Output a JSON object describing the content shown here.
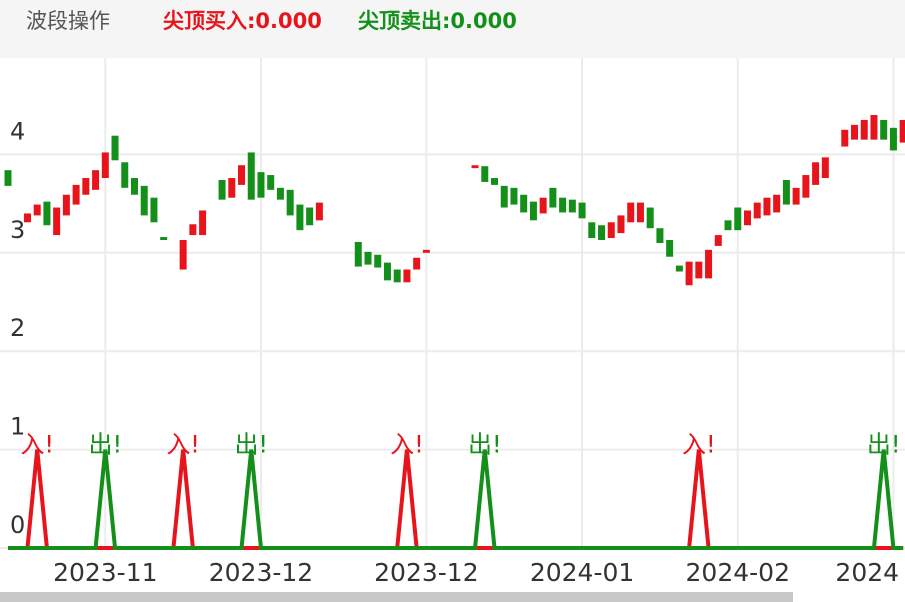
{
  "chart_data": {
    "type": "candlestick",
    "title": "波段操作",
    "up_color": "#e8141b",
    "down_color": "#14901a",
    "ylim": [
      0,
      5
    ],
    "yticks": [
      0,
      1,
      2,
      3,
      4
    ],
    "grid": true,
    "categories": [
      null,
      null,
      null,
      null,
      null,
      null,
      null,
      null,
      null,
      null,
      "2023-11",
      null,
      null,
      null,
      null,
      null,
      null,
      null,
      null,
      null,
      null,
      null,
      null,
      null,
      null,
      null,
      "2023-12",
      null,
      null,
      null,
      null,
      null,
      null,
      null,
      null,
      null,
      null,
      null,
      null,
      null,
      null,
      null,
      null,
      "2023-12",
      null,
      null,
      null,
      null,
      null,
      null,
      null,
      null,
      null,
      null,
      null,
      null,
      null,
      null,
      null,
      "2024-01",
      null,
      null,
      null,
      null,
      null,
      null,
      null,
      null,
      null,
      null,
      null,
      null,
      null,
      null,
      null,
      "2024-02",
      null,
      null,
      null,
      null,
      null,
      null,
      null,
      null,
      null,
      null,
      null,
      null,
      null,
      null,
      null,
      "2024",
      null
    ],
    "open": [
      3.84,
      null,
      3.31,
      3.38,
      3.52,
      3.18,
      3.38,
      3.49,
      3.59,
      3.64,
      3.76,
      4.19,
      3.92,
      3.76,
      3.68,
      3.56,
      3.16,
      null,
      2.83,
      3.18,
      3.18,
      null,
      3.74,
      3.56,
      3.69,
      4.02,
      3.82,
      3.79,
      3.66,
      3.64,
      3.49,
      3.46,
      3.33,
      null,
      null,
      null,
      3.11,
      3.01,
      2.98,
      2.9,
      2.83,
      2.7,
      2.83,
      3.0,
      null,
      null,
      null,
      null,
      3.86,
      3.88,
      3.76,
      3.68,
      3.66,
      3.59,
      3.52,
      3.4,
      3.66,
      3.56,
      3.54,
      3.51,
      3.31,
      3.28,
      3.15,
      3.2,
      3.31,
      3.31,
      3.46,
      3.25,
      3.13,
      2.87,
      2.67,
      2.74,
      2.74,
      3.07,
      3.33,
      3.46,
      3.28,
      3.35,
      3.38,
      3.41,
      3.74,
      3.49,
      3.56,
      3.69,
      3.76,
      null,
      4.08,
      4.15,
      4.15,
      4.15,
      4.35,
      4.27,
      4.12
    ],
    "close": [
      3.68,
      null,
      3.4,
      3.49,
      3.28,
      3.46,
      3.59,
      3.69,
      3.76,
      3.84,
      4.02,
      3.94,
      3.66,
      3.59,
      3.38,
      3.31,
      3.13,
      null,
      3.13,
      3.29,
      3.43,
      null,
      3.54,
      3.76,
      3.89,
      3.54,
      3.56,
      3.64,
      3.54,
      3.38,
      3.23,
      3.28,
      3.51,
      null,
      null,
      null,
      2.86,
      2.88,
      2.85,
      2.72,
      2.7,
      2.83,
      2.95,
      3.03,
      null,
      null,
      null,
      null,
      3.89,
      3.72,
      3.69,
      3.46,
      3.49,
      3.41,
      3.33,
      3.56,
      3.46,
      3.41,
      3.41,
      3.35,
      3.15,
      3.13,
      3.31,
      3.38,
      3.51,
      3.51,
      3.25,
      3.1,
      2.96,
      2.81,
      2.91,
      2.91,
      3.03,
      3.18,
      3.23,
      3.23,
      3.43,
      3.51,
      3.56,
      3.59,
      3.49,
      3.66,
      3.79,
      3.92,
      3.97,
      null,
      4.25,
      4.3,
      4.35,
      4.4,
      4.15,
      4.04,
      4.35
    ],
    "series": [
      {
        "name": "尖顶买入:0.000",
        "color": "#e8141b",
        "label": "入!",
        "values": [
          0,
          0,
          0,
          1,
          0,
          0,
          0,
          0,
          0,
          0,
          0,
          0,
          0,
          0,
          0,
          0,
          0,
          0,
          1,
          0,
          0,
          0,
          0,
          0,
          0,
          0,
          0,
          0,
          0,
          0,
          0,
          0,
          0,
          0,
          0,
          0,
          0,
          0,
          0,
          0,
          0,
          1,
          0,
          0,
          0,
          0,
          0,
          0,
          0,
          0,
          0,
          0,
          0,
          0,
          0,
          0,
          0,
          0,
          0,
          0,
          0,
          0,
          0,
          0,
          0,
          0,
          0,
          0,
          0,
          0,
          0,
          1,
          0,
          0,
          0,
          0,
          0,
          0,
          0,
          0,
          0,
          0,
          0,
          0,
          0,
          0,
          0,
          0,
          0,
          0,
          0,
          0,
          0
        ]
      },
      {
        "name": "尖顶卖出:0.000",
        "color": "#14901a",
        "label": "出!",
        "values": [
          0,
          0,
          0,
          0,
          0,
          0,
          0,
          0,
          0,
          0,
          1,
          0,
          0,
          0,
          0,
          0,
          0,
          0,
          0,
          0,
          0,
          0,
          0,
          0,
          0,
          1,
          0,
          0,
          0,
          0,
          0,
          0,
          0,
          0,
          0,
          0,
          0,
          0,
          0,
          0,
          0,
          0,
          0,
          0,
          0,
          0,
          0,
          0,
          0,
          1,
          0,
          0,
          0,
          0,
          0,
          0,
          0,
          0,
          0,
          0,
          0,
          0,
          0,
          0,
          0,
          0,
          0,
          0,
          0,
          0,
          0,
          0,
          0,
          0,
          0,
          0,
          0,
          0,
          0,
          0,
          0,
          0,
          0,
          0,
          0,
          0,
          0,
          0,
          0,
          0,
          1,
          0,
          0
        ]
      }
    ]
  }
}
